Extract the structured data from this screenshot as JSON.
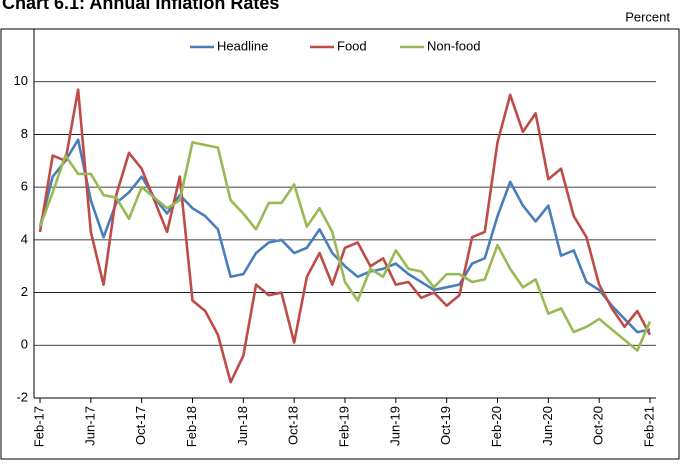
{
  "chart_data": {
    "type": "line",
    "title": "Chart 6.1: Annual Inflation Rates",
    "y_label": "Percent",
    "categories": [
      "Feb-17",
      null,
      null,
      null,
      "Jun-17",
      null,
      null,
      null,
      "Oct-17",
      null,
      null,
      null,
      "Feb-18",
      null,
      null,
      null,
      "Jun-18",
      null,
      null,
      null,
      "Oct-18",
      null,
      null,
      null,
      "Feb-19",
      null,
      null,
      null,
      "Jun-19",
      null,
      null,
      null,
      "Oct-19",
      null,
      null,
      null,
      "Feb-20",
      null,
      null,
      null,
      "Jun-20",
      null,
      null,
      null,
      "Oct-20",
      null,
      null,
      null,
      "Feb-21"
    ],
    "series": [
      {
        "name": "Headline",
        "color": "#4a7ebb",
        "values": [
          4.5,
          6.4,
          7.0,
          7.8,
          5.5,
          4.1,
          5.4,
          5.8,
          6.4,
          5.6,
          5.0,
          5.7,
          5.2,
          4.9,
          4.4,
          2.6,
          2.7,
          3.5,
          3.9,
          4.0,
          3.5,
          3.7,
          4.4,
          3.5,
          3.0,
          2.6,
          2.8,
          2.9,
          3.1,
          2.7,
          2.4,
          2.1,
          2.2,
          2.3,
          3.1,
          3.3,
          4.9,
          6.2,
          5.3,
          4.7,
          5.3,
          3.4,
          3.6,
          2.4,
          2.1,
          1.5,
          1.0,
          0.5,
          0.6
        ]
      },
      {
        "name": "Food",
        "color": "#be4b48",
        "values": [
          4.3,
          7.2,
          7.0,
          9.7,
          4.3,
          2.3,
          5.7,
          7.3,
          6.7,
          5.5,
          4.3,
          6.4,
          1.7,
          1.3,
          0.4,
          -1.4,
          -0.4,
          2.3,
          1.9,
          2.0,
          0.1,
          2.6,
          3.5,
          2.3,
          3.7,
          3.9,
          3.0,
          3.3,
          2.3,
          2.4,
          1.8,
          2.0,
          1.5,
          1.9,
          4.1,
          4.3,
          7.7,
          9.5,
          8.1,
          8.8,
          6.3,
          6.7,
          4.9,
          4.1,
          2.3,
          1.4,
          0.7,
          1.3,
          0.4
        ]
      },
      {
        "name": "Non-food",
        "color": "#98b954",
        "values": [
          4.5,
          5.8,
          7.2,
          6.5,
          6.5,
          5.7,
          5.6,
          4.8,
          6.0,
          5.6,
          5.2,
          5.5,
          7.7,
          7.6,
          7.5,
          5.5,
          5.0,
          4.4,
          5.4,
          5.4,
          6.1,
          4.5,
          5.2,
          4.3,
          2.4,
          1.7,
          2.9,
          2.6,
          3.6,
          2.9,
          2.8,
          2.2,
          2.7,
          2.7,
          2.4,
          2.5,
          3.8,
          2.9,
          2.2,
          2.5,
          1.2,
          1.4,
          0.5,
          0.7,
          1.0,
          0.6,
          0.2,
          -0.2,
          0.9
        ]
      }
    ],
    "ylim": [
      -2,
      12
    ],
    "yticks": [
      -2,
      0,
      2,
      4,
      6,
      8,
      10
    ],
    "grid": true,
    "legend": "top"
  }
}
